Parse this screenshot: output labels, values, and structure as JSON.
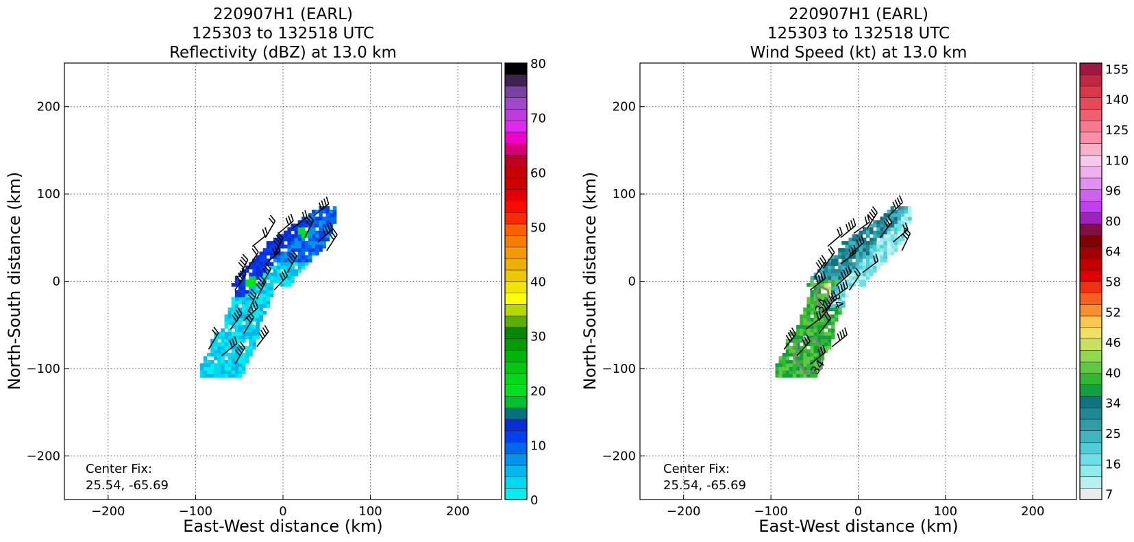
{
  "chart_data": [
    {
      "type": "heatmap",
      "title": [
        "220907H1 (EARL)",
        "125303 to 132518 UTC",
        "Reflectivity (dBZ) at 13.0 km"
      ],
      "xlabel": "East-West distance (km)",
      "ylabel": "North-South distance (km)",
      "xlim": [
        -250,
        250
      ],
      "ylim": [
        -250,
        250
      ],
      "xticks": [
        -200,
        -100,
        0,
        100,
        200
      ],
      "yticks": [
        -200,
        -100,
        0,
        100,
        200
      ],
      "grid": true,
      "annotation": [
        "Center Fix:",
        "25.54, -65.69"
      ],
      "colorbar": {
        "range": [
          0,
          80
        ],
        "tick_labels": [
          "0",
          "10",
          "20",
          "30",
          "40",
          "50",
          "60",
          "70",
          "80"
        ],
        "tick_values": [
          0,
          10,
          20,
          30,
          40,
          50,
          60,
          70,
          80
        ],
        "colors": [
          "#00f0f0",
          "#00d8ee",
          "#00b8ee",
          "#0094ec",
          "#0068ec",
          "#0040f0",
          "#0a2ed6",
          "#087080",
          "#00c030",
          "#00e020",
          "#00d818",
          "#00c810",
          "#00b408",
          "#009c06",
          "#008800",
          "#5cae00",
          "#b6d800",
          "#ffff00",
          "#f2e600",
          "#ecc800",
          "#ecb000",
          "#f49a00",
          "#f87c00",
          "#fc6000",
          "#ff2800",
          "#f80c00",
          "#e40000",
          "#d00000",
          "#c80000",
          "#c00020",
          "#d8007a",
          "#f000c8",
          "#e028f0",
          "#be3cdc",
          "#a048cc",
          "#7840a0",
          "#3c2450",
          "#000000"
        ]
      },
      "data_description": "Elongated echo region oriented SW-NE from about (-80,-115) to (45,80) km; mostly 0-15 dBZ, small patches of 16-25 dBZ near (-40,0) and (25,55)."
    },
    {
      "type": "heatmap",
      "title": [
        "220907H1 (EARL)",
        "125303 to 132518 UTC",
        "Wind Speed (kt) at 13.0 km"
      ],
      "xlabel": "East-West distance (km)",
      "ylabel": "North-South distance (km)",
      "xlim": [
        -250,
        250
      ],
      "ylim": [
        -250,
        250
      ],
      "xticks": [
        -200,
        -100,
        0,
        100,
        200
      ],
      "yticks": [
        -200,
        -100,
        0,
        100,
        200
      ],
      "grid": true,
      "annotation": [
        "Center Fix:",
        "25.54, -65.69"
      ],
      "contour_labels": [
        "34",
        "34",
        "34"
      ],
      "colorbar": {
        "tick_labels": [
          "7",
          "16",
          "25",
          "34",
          "40",
          "46",
          "52",
          "58",
          "64",
          "80",
          "96",
          "110",
          "125",
          "140",
          "155"
        ],
        "colors": [
          "#ececec",
          "#b8f0f0",
          "#90ecec",
          "#6ce0e4",
          "#50ccd4",
          "#40b4c0",
          "#309ca8",
          "#208894",
          "#107480",
          "#10a040",
          "#30b830",
          "#60c840",
          "#90d850",
          "#c8e060",
          "#f0e060",
          "#f8c850",
          "#f89030",
          "#f86020",
          "#f03010",
          "#e00000",
          "#c00000",
          "#a00000",
          "#800000",
          "#801040",
          "#a020c0",
          "#c040f0",
          "#d060f0",
          "#e090f0",
          "#f0b0f0",
          "#f8c8e8",
          "#f8b0c8",
          "#f890a8",
          "#f87890",
          "#f06070",
          "#e84858",
          "#d83848",
          "#c02840",
          "#a01840"
        ]
      },
      "data_description": "Wind speed field over the same SW-NE oriented region; mostly 10-34 kt with stronger 34-40 kt winds in the southwest portion near (-50,-80) km."
    }
  ]
}
